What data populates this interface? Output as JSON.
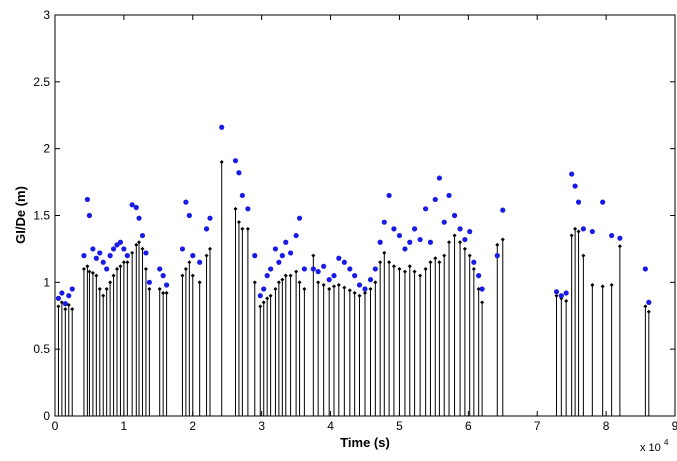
{
  "chart_data": {
    "type": "stem",
    "xlabel": "Time (s)",
    "ylabel": "GI/De (m)",
    "x_multiplier": "x 10",
    "x_multiplier_exp": "4",
    "xlim": [
      0,
      9
    ],
    "xticks": [
      0,
      1,
      2,
      3,
      4,
      5,
      6,
      7,
      8,
      9
    ],
    "ylim": [
      0,
      3
    ],
    "yticks": [
      0,
      0.5,
      1,
      1.5,
      2,
      2.5,
      3
    ],
    "x": [
      0.05,
      0.1,
      0.15,
      0.2,
      0.25,
      0.42,
      0.47,
      0.5,
      0.55,
      0.6,
      0.65,
      0.7,
      0.75,
      0.8,
      0.85,
      0.9,
      0.95,
      1.0,
      1.05,
      1.12,
      1.18,
      1.22,
      1.27,
      1.32,
      1.37,
      1.52,
      1.57,
      1.62,
      1.85,
      1.9,
      1.95,
      2.0,
      2.1,
      2.2,
      2.25,
      2.42,
      2.62,
      2.67,
      2.72,
      2.8,
      2.9,
      2.98,
      3.03,
      3.08,
      3.13,
      3.2,
      3.25,
      3.3,
      3.35,
      3.42,
      3.5,
      3.55,
      3.62,
      3.75,
      3.82,
      3.9,
      3.98,
      4.05,
      4.12,
      4.2,
      4.28,
      4.35,
      4.42,
      4.5,
      4.58,
      4.65,
      4.72,
      4.78,
      4.85,
      4.92,
      5.0,
      5.08,
      5.15,
      5.22,
      5.3,
      5.38,
      5.45,
      5.52,
      5.58,
      5.65,
      5.72,
      5.8,
      5.88,
      5.95,
      6.02,
      6.08,
      6.15,
      6.2,
      6.42,
      6.5,
      7.28,
      7.35,
      7.42,
      7.5,
      7.55,
      7.6,
      7.67,
      7.8,
      7.95,
      8.08,
      8.2,
      8.57,
      8.62
    ],
    "series": [
      {
        "color": "#000000",
        "values": [
          0.82,
          0.85,
          0.8,
          0.83,
          0.8,
          1.1,
          1.12,
          1.08,
          1.07,
          1.05,
          0.95,
          0.9,
          0.95,
          1.0,
          1.05,
          1.1,
          1.12,
          1.15,
          1.15,
          1.22,
          1.28,
          1.3,
          1.25,
          1.1,
          0.95,
          0.95,
          0.92,
          0.92,
          1.05,
          1.1,
          1.15,
          1.05,
          1.0,
          1.2,
          1.25,
          1.9,
          1.55,
          1.45,
          1.4,
          1.4,
          1.0,
          0.82,
          0.85,
          0.88,
          0.9,
          0.95,
          1.0,
          1.02,
          1.05,
          1.05,
          1.08,
          1.0,
          0.95,
          1.2,
          1.0,
          0.98,
          0.95,
          0.97,
          0.98,
          0.96,
          0.94,
          0.92,
          0.9,
          0.92,
          0.95,
          1.0,
          1.15,
          1.22,
          1.15,
          1.12,
          1.1,
          1.08,
          1.12,
          1.08,
          1.05,
          1.1,
          1.15,
          1.18,
          1.15,
          1.2,
          1.3,
          1.35,
          1.3,
          1.25,
          1.2,
          1.1,
          0.95,
          0.85,
          1.28,
          1.32,
          0.9,
          0.88,
          0.86,
          1.35,
          1.4,
          1.38,
          1.2,
          0.98,
          0.97,
          0.98,
          1.27,
          0.82,
          0.78
        ]
      },
      {
        "color": "#1a1ae6",
        "values": [
          0.88,
          0.92,
          0.84,
          0.9,
          0.95,
          1.2,
          1.62,
          1.5,
          1.25,
          1.18,
          1.22,
          1.15,
          1.1,
          1.2,
          1.25,
          1.28,
          1.3,
          1.25,
          1.2,
          1.58,
          1.56,
          1.48,
          1.35,
          1.22,
          1.0,
          1.1,
          1.05,
          0.98,
          1.25,
          1.6,
          1.5,
          1.2,
          1.15,
          1.4,
          1.48,
          2.16,
          1.91,
          1.82,
          1.65,
          1.55,
          1.2,
          0.9,
          0.95,
          1.05,
          1.1,
          1.25,
          1.15,
          1.2,
          1.3,
          1.22,
          1.35,
          1.48,
          1.1,
          1.1,
          1.08,
          1.12,
          1.02,
          1.05,
          1.18,
          1.15,
          1.1,
          1.05,
          0.98,
          0.95,
          1.02,
          1.1,
          1.3,
          1.45,
          1.65,
          1.4,
          1.35,
          1.25,
          1.3,
          1.4,
          1.32,
          1.55,
          1.3,
          1.62,
          1.78,
          1.45,
          1.65,
          1.5,
          1.4,
          1.32,
          1.38,
          1.15,
          1.05,
          0.95,
          1.2,
          1.54,
          0.93,
          0.9,
          0.92,
          1.81,
          1.72,
          1.6,
          1.4,
          1.38,
          1.6,
          1.35,
          1.33,
          1.1,
          0.85
        ]
      }
    ]
  }
}
